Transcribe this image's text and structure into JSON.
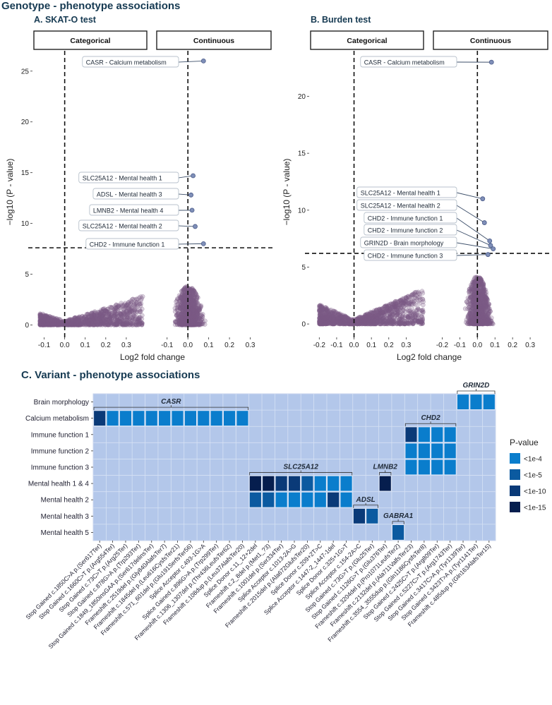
{
  "figure_title": "Genotype - phenotype associations",
  "panel_a_title": "A. SKAT-O test",
  "panel_b_title": "B. Burden test",
  "panel_c_title": "C. Variant - phenotype associations",
  "facet_labels": [
    "Categorical",
    "Continuous"
  ],
  "x_axis_label": "Log2 fold change",
  "y_axis_label": "−log10 (P - value)",
  "colors": {
    "point": "#7b5a85",
    "highlight": "#7f8fb8",
    "heat_bg": "#b3c7ea",
    "pv_1e4": "#0a7dcc",
    "pv_1e5": "#0b5aa0",
    "pv_1e10": "#0a3a78",
    "pv_1e15": "#061e4e",
    "title": "#163a52"
  },
  "chart_data": [
    {
      "type": "scatter",
      "title": "A. SKAT-O test",
      "xlabel": "Log2 fold change",
      "ylabel": "-log10 (P - value)",
      "xlim": [
        -0.15,
        0.4
      ],
      "ylim": [
        -0.8,
        27
      ],
      "xticks": [
        -0.1,
        0.0,
        0.1,
        0.2,
        0.3
      ],
      "xtick_labels": [
        "-0.1",
        "0.0",
        "0.1",
        "0.2",
        "0.3"
      ],
      "yticks": [
        0,
        5,
        10,
        15,
        20,
        25
      ],
      "ytick_labels": [
        "0",
        "5",
        "10",
        "15",
        "20",
        "25"
      ],
      "significance_threshold": 7.6,
      "bulk": {
        "Categorical": {
          "x_range": [
            -0.12,
            0.38
          ],
          "y_max": 2.8
        },
        "Continuous": {
          "x_range": [
            -0.08,
            0.09
          ],
          "y_max": 3.8
        }
      },
      "highlighted": [
        {
          "label": "CASR - Calcium metabolism",
          "facet": "Continuous",
          "x": 0.075,
          "y": 26.0
        },
        {
          "label": "SLC25A12 - Mental health 1",
          "facet": "Continuous",
          "x": 0.025,
          "y": 14.7
        },
        {
          "label": "ADSL - Mental health 3",
          "facet": "Continuous",
          "x": 0.015,
          "y": 12.8
        },
        {
          "label": "LMNB2 - Mental health 4",
          "facet": "Continuous",
          "x": 0.02,
          "y": 11.3
        },
        {
          "label": "SLC25A12 - Mental health 2",
          "facet": "Continuous",
          "x": 0.035,
          "y": 9.7
        },
        {
          "label": "CHD2 - Immune function 1",
          "facet": "Continuous",
          "x": 0.075,
          "y": 8.0
        }
      ]
    },
    {
      "type": "scatter",
      "title": "B. Burden test",
      "xlabel": "Log2 fold change",
      "ylabel": "-log10 (P - value)",
      "xlim": [
        -0.25,
        0.4
      ],
      "ylim": [
        -0.8,
        24
      ],
      "xticks": [
        -0.2,
        -0.1,
        0.0,
        0.1,
        0.2,
        0.3
      ],
      "xtick_labels": [
        "-0.2",
        "-0.1",
        "0.0",
        "0.1",
        "0.2",
        "0.3"
      ],
      "yticks": [
        0,
        5,
        10,
        15,
        20
      ],
      "ytick_labels": [
        "0",
        "5",
        "10",
        "15",
        "20"
      ],
      "significance_threshold": 6.2,
      "bulk": {
        "Categorical": {
          "x_range": [
            -0.2,
            0.4
          ],
          "y_max": 3.2
        },
        "Continuous": {
          "x_range": [
            -0.08,
            0.1
          ],
          "y_max": 4.2
        }
      },
      "highlighted": [
        {
          "label": "CASR - Calcium metabolism",
          "facet": "Continuous",
          "x": 0.08,
          "y": 23.0
        },
        {
          "label": "SLC25A12 - Mental health 1",
          "facet": "Continuous",
          "x": 0.03,
          "y": 11.0
        },
        {
          "label": "SLC25A12 - Mental health 2",
          "facet": "Continuous",
          "x": 0.04,
          "y": 8.9
        },
        {
          "label": "CHD2 - Immune function 1",
          "facet": "Continuous",
          "x": 0.07,
          "y": 7.3
        },
        {
          "label": "CHD2 - Immune function 2",
          "facet": "Continuous",
          "x": 0.075,
          "y": 6.9
        },
        {
          "label": "GRIN2D - Brain morphology",
          "facet": "Continuous",
          "x": 0.09,
          "y": 6.6
        },
        {
          "label": "CHD2 - Immune function 3",
          "facet": "Continuous",
          "x": 0.06,
          "y": 6.1
        }
      ]
    },
    {
      "type": "heatmap",
      "title": "C. Variant - phenotype associations",
      "rows": [
        "Brain morphology",
        "Calcium metabolism",
        "Immune function 1",
        "Immune function 2",
        "Immune function 3",
        "Mental health 1 & 4",
        "Mental health 2",
        "Mental health 3",
        "Mental health 5"
      ],
      "columns": [
        "Stop Gained c.1850C>A p.(Ser617Ter)",
        "Stop Gained c.1660C>T p.(Arg554Ter)",
        "Stop Gained c.73C>T p.(Arg25Ter)",
        "Stop Gained c.878G>A p.(Trp293Ter)",
        "Stop Gained c.1849_1850insGAA p.(Ser617delinsTer)",
        "Frameshift c.2519del p.(Gly840AlafsTer7)",
        "Frameshift c.1845del p.(Leu616CysfsTer21)",
        "Frameshift c.571_601del p.(Glu191SerfsTer56)",
        "Splice Acceptor c.493-1G>A",
        "Splice Gained c.896G>A p.(Trp299Ter)",
        "Frameshift c.1306_1307del p.(Thr436LeufsTer62)",
        "Frameshift c.108dup p.(Leu37AlafsTer20)",
        "Splice Donor c.11_12+2del",
        "Frameshift c.2_8del p.(Met1_?3)",
        "Frameshift c.1001del p.(Ser334Ter)",
        "Splice Acceptor c.1013-2A>G",
        "Frameshift c.2015del p.(Ala672GlufsTer20)",
        "Splice Donor c.209+2T>C",
        "Splice Acceptor c.1447-2_1447-1del",
        "Splice Donor c.325+1G>T",
        "Splice Acceptor c.154-2A>C",
        "Stop Gained c.73G>T p.(Glu25Ter)",
        "Stop Gained c.1126G>T p.(Glu376Ter)",
        "Frameshift c.3204del p.(Pro1071LeufsTer2)",
        "Frameshift c.2132del p.(Ala711ValfsTer23)",
        "Frameshift c.3554_3555dup p.(Gln1186CysfsTer8)",
        "Stop Gained c.2425C>T p.(Arg809Ter)",
        "Stop Gained c.5227C>T p.(Arg1743Ter)",
        "Stop Gained c.3417C>A p.(Tyr1139Ter)",
        "Stop Gained c.3423T>A p.(Tyr1141Ter)",
        "Frameshift c.485dup p.(Gln163AlafsTer15)"
      ],
      "legend_title": "P-value",
      "levels": [
        "<1e-4",
        "<1e-5",
        "<1e-10",
        "<1e-15"
      ],
      "cells": [
        {
          "row": "Brain morphology",
          "col": 28,
          "level": "<1e-4"
        },
        {
          "row": "Brain morphology",
          "col": 29,
          "level": "<1e-4"
        },
        {
          "row": "Brain morphology",
          "col": 30,
          "level": "<1e-4"
        },
        {
          "row": "Calcium metabolism",
          "col": 0,
          "level": "<1e-10"
        },
        {
          "row": "Calcium metabolism",
          "col": 1,
          "level": "<1e-4"
        },
        {
          "row": "Calcium metabolism",
          "col": 2,
          "level": "<1e-4"
        },
        {
          "row": "Calcium metabolism",
          "col": 3,
          "level": "<1e-4"
        },
        {
          "row": "Calcium metabolism",
          "col": 4,
          "level": "<1e-4"
        },
        {
          "row": "Calcium metabolism",
          "col": 5,
          "level": "<1e-4"
        },
        {
          "row": "Calcium metabolism",
          "col": 6,
          "level": "<1e-4"
        },
        {
          "row": "Calcium metabolism",
          "col": 7,
          "level": "<1e-4"
        },
        {
          "row": "Calcium metabolism",
          "col": 8,
          "level": "<1e-4"
        },
        {
          "row": "Calcium metabolism",
          "col": 9,
          "level": "<1e-4"
        },
        {
          "row": "Calcium metabolism",
          "col": 10,
          "level": "<1e-4"
        },
        {
          "row": "Calcium metabolism",
          "col": 11,
          "level": "<1e-4"
        },
        {
          "row": "Immune function 1",
          "col": 24,
          "level": "<1e-10"
        },
        {
          "row": "Immune function 1",
          "col": 25,
          "level": "<1e-4"
        },
        {
          "row": "Immune function 1",
          "col": 26,
          "level": "<1e-4"
        },
        {
          "row": "Immune function 1",
          "col": 27,
          "level": "<1e-4"
        },
        {
          "row": "Immune function 2",
          "col": 24,
          "level": "<1e-4"
        },
        {
          "row": "Immune function 2",
          "col": 25,
          "level": "<1e-4"
        },
        {
          "row": "Immune function 2",
          "col": 26,
          "level": "<1e-4"
        },
        {
          "row": "Immune function 2",
          "col": 27,
          "level": "<1e-4"
        },
        {
          "row": "Immune function 3",
          "col": 24,
          "level": "<1e-4"
        },
        {
          "row": "Immune function 3",
          "col": 25,
          "level": "<1e-4"
        },
        {
          "row": "Immune function 3",
          "col": 26,
          "level": "<1e-4"
        },
        {
          "row": "Immune function 3",
          "col": 27,
          "level": "<1e-4"
        },
        {
          "row": "Mental health 1 & 4",
          "col": 12,
          "level": "<1e-15"
        },
        {
          "row": "Mental health 1 & 4",
          "col": 13,
          "level": "<1e-15"
        },
        {
          "row": "Mental health 1 & 4",
          "col": 14,
          "level": "<1e-10"
        },
        {
          "row": "Mental health 1 & 4",
          "col": 15,
          "level": "<1e-10"
        },
        {
          "row": "Mental health 1 & 4",
          "col": 16,
          "level": "<1e-5"
        },
        {
          "row": "Mental health 1 & 4",
          "col": 17,
          "level": "<1e-4"
        },
        {
          "row": "Mental health 1 & 4",
          "col": 18,
          "level": "<1e-4"
        },
        {
          "row": "Mental health 1 & 4",
          "col": 19,
          "level": "<1e-4"
        },
        {
          "row": "Mental health 1 & 4",
          "col": 22,
          "level": "<1e-15"
        },
        {
          "row": "Mental health 2",
          "col": 12,
          "level": "<1e-5"
        },
        {
          "row": "Mental health 2",
          "col": 13,
          "level": "<1e-5"
        },
        {
          "row": "Mental health 2",
          "col": 14,
          "level": "<1e-4"
        },
        {
          "row": "Mental health 2",
          "col": 15,
          "level": "<1e-4"
        },
        {
          "row": "Mental health 2",
          "col": 16,
          "level": "<1e-4"
        },
        {
          "row": "Mental health 2",
          "col": 17,
          "level": "<1e-4"
        },
        {
          "row": "Mental health 2",
          "col": 18,
          "level": "<1e-10"
        },
        {
          "row": "Mental health 2",
          "col": 19,
          "level": "<1e-4"
        },
        {
          "row": "Mental health 3",
          "col": 20,
          "level": "<1e-10"
        },
        {
          "row": "Mental health 3",
          "col": 21,
          "level": "<1e-5"
        },
        {
          "row": "Mental health 5",
          "col": 23,
          "level": "<1e-5"
        }
      ],
      "gene_groups": [
        {
          "gene": "CASR",
          "row": "Calcium metabolism",
          "cols": [
            0,
            11
          ]
        },
        {
          "gene": "SLC25A12",
          "row": "Mental health 1 & 4",
          "cols": [
            12,
            19
          ]
        },
        {
          "gene": "LMNB2",
          "row": "Mental health 1 & 4",
          "cols": [
            22,
            22
          ]
        },
        {
          "gene": "ADSL",
          "row": "Mental health 3",
          "cols": [
            20,
            21
          ]
        },
        {
          "gene": "GABRA1",
          "row": "Mental health 5",
          "cols": [
            23,
            23
          ]
        },
        {
          "gene": "CHD2",
          "row": "Immune function 1",
          "cols": [
            24,
            27
          ]
        },
        {
          "gene": "GRIN2D",
          "row": "Brain morphology",
          "cols": [
            28,
            30
          ]
        }
      ]
    }
  ]
}
